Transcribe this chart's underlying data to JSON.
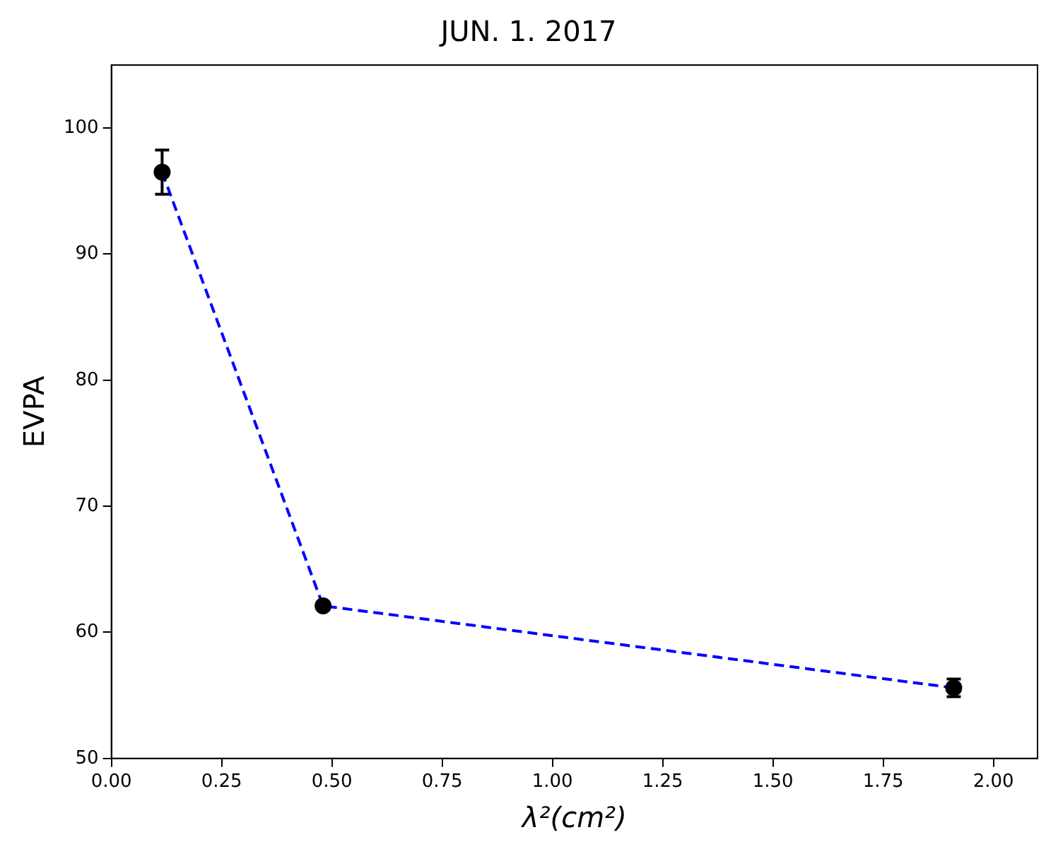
{
  "chart_data": {
    "type": "scatter",
    "title": "JUN. 1. 2017",
    "xlabel": "λ²(cm²)",
    "ylabel": "EVPA",
    "x": [
      0.115,
      0.48,
      1.91
    ],
    "series": [
      {
        "type": "line",
        "color": "#0000ff",
        "values": [
          96.5,
          62.1,
          55.6
        ],
        "line_style": "dashed",
        "marker": "none"
      },
      {
        "type": "scatter",
        "color": "#000000",
        "values": [
          96.5,
          62.1,
          55.6
        ],
        "errors": [
          1.75,
          null,
          0.7
        ],
        "marker": "circle"
      }
    ],
    "xlim": [
      0,
      2.1
    ],
    "xticks": [
      {
        "value": 0,
        "label": "0.00"
      },
      {
        "value": 0.25,
        "label": "0.25"
      },
      {
        "value": 0.5,
        "label": "0.50"
      },
      {
        "value": 0.75,
        "label": "0.75"
      },
      {
        "value": 1,
        "label": "1.00"
      },
      {
        "value": 1.25,
        "label": "1.25"
      },
      {
        "value": 1.5,
        "label": "1.50"
      },
      {
        "value": 1.75,
        "label": "1.75"
      },
      {
        "value": 2,
        "label": "2.00"
      }
    ],
    "ylim": [
      50,
      105
    ],
    "yticks": [
      50,
      60,
      70,
      80,
      90,
      100
    ],
    "grid": false,
    "legend": false
  }
}
